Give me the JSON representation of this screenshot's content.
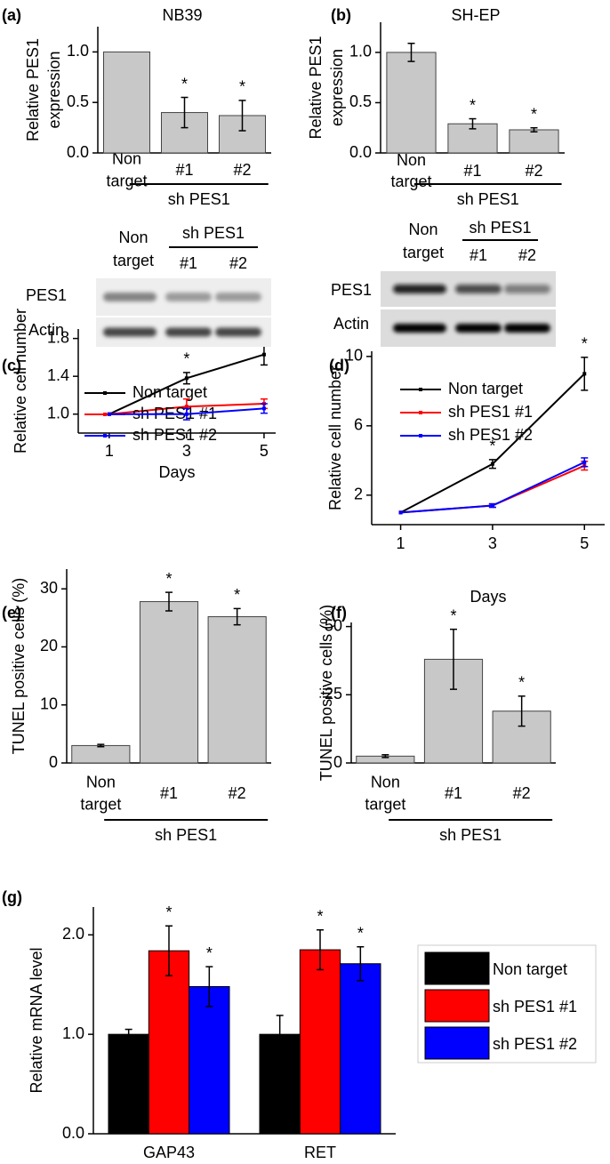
{
  "chart_data": [
    {
      "panel": "(a)",
      "type": "bar",
      "title": "NB39",
      "y_label": "Relative PES1 expression",
      "categories": [
        "Non target",
        "#1",
        "#2"
      ],
      "values": [
        1.0,
        0.4,
        0.37
      ],
      "errors": [
        null,
        0.15,
        0.15
      ],
      "annotations": [
        null,
        "*",
        "*"
      ],
      "group_label": "sh PES1",
      "color": "#c8c8c8",
      "ylim": [
        0,
        1.25
      ],
      "yticks": [
        {
          "value": 0,
          "label": "0.0"
        },
        0.5,
        {
          "value": 1,
          "label": "1.0"
        }
      ]
    },
    {
      "panel": "(b)",
      "type": "bar",
      "title": "SH-EP",
      "y_label": "Relative PES1 expression",
      "categories": [
        "Non target",
        "#1",
        "#2"
      ],
      "values": [
        1.0,
        0.29,
        0.23
      ],
      "errors": [
        0.09,
        0.05,
        0.02
      ],
      "annotations": [
        null,
        "*",
        "*"
      ],
      "group_label": "sh PES1",
      "color": "#c8c8c8",
      "ylim": [
        0,
        1.3
      ],
      "yticks": [
        {
          "value": 0,
          "label": "0.0"
        },
        0.5,
        {
          "value": 1,
          "label": "1.0"
        }
      ]
    },
    {
      "panel": "(c)",
      "type": "line",
      "x_label": "Days",
      "y_label": "Relative cell number",
      "legend": "upper left",
      "x": [
        1,
        3,
        5
      ],
      "xlim": [
        0.2,
        5.3
      ],
      "xticks": [
        1,
        3,
        5
      ],
      "ylim": [
        0.8,
        1.9
      ],
      "yticks": [
        {
          "value": 1,
          "label": "1.0"
        },
        1.4,
        1.8
      ],
      "series": [
        {
          "name": "Non target",
          "color": "#000000",
          "values": [
            1.0,
            1.38,
            1.63
          ],
          "errors": [
            null,
            0.06,
            0.11
          ],
          "annotations": [
            null,
            "*",
            "*"
          ]
        },
        {
          "name": "sh PES1 #1",
          "color": "#ff0000",
          "values": [
            1.0,
            1.08,
            1.11
          ],
          "errors": [
            null,
            0.08,
            0.05
          ]
        },
        {
          "name": "sh PES1 #2",
          "color": "#0000ff",
          "values": [
            1.0,
            1.0,
            1.06
          ],
          "errors": [
            null,
            0.06,
            0.05
          ]
        }
      ]
    },
    {
      "panel": "(d)",
      "type": "line",
      "x_label": "Days",
      "y_label": "Relative cell number",
      "legend": "upper left",
      "x": [
        1,
        3,
        5
      ],
      "xlim": [
        0.37,
        5.44
      ],
      "xticks": [
        1,
        3,
        5
      ],
      "ylim": [
        0.3,
        10.3
      ],
      "yticks": [
        2,
        6,
        10
      ],
      "series": [
        {
          "name": "Non target",
          "color": "#000000",
          "values": [
            1.0,
            3.8,
            9.0
          ],
          "errors": [
            null,
            0.25,
            0.95
          ],
          "annotations": [
            null,
            "*",
            "*"
          ]
        },
        {
          "name": "sh PES1 #1",
          "color": "#ff0000",
          "values": [
            1.0,
            1.4,
            3.7
          ],
          "errors": [
            null,
            0.1,
            0.25
          ]
        },
        {
          "name": "sh PES1 #2",
          "color": "#0000ff",
          "values": [
            1.0,
            1.4,
            3.9
          ],
          "errors": [
            null,
            0.1,
            0.25
          ]
        }
      ]
    },
    {
      "panel": "(e)",
      "type": "bar",
      "y_label": "TUNEL positive cells (%)",
      "categories": [
        "Non target",
        "#1",
        "#2"
      ],
      "values": [
        3.0,
        27.8,
        25.2
      ],
      "errors": [
        0.2,
        1.6,
        1.4
      ],
      "annotations": [
        null,
        "*",
        "*"
      ],
      "group_label": "sh PES1",
      "color": "#c8c8c8",
      "ylim": [
        0,
        33.4
      ],
      "yticks": [
        0,
        10,
        20,
        30
      ]
    },
    {
      "panel": "(f)",
      "type": "bar",
      "y_label": "TUNEL positive cells (%)",
      "categories": [
        "Non target",
        "#1",
        "#2"
      ],
      "values": [
        2.5,
        38,
        19
      ],
      "errors": [
        0.5,
        11,
        5.5
      ],
      "annotations": [
        null,
        "*",
        "*"
      ],
      "group_label": "sh PES1",
      "color": "#c8c8c8",
      "ylim": [
        0,
        51.5
      ],
      "yticks": [
        0,
        25,
        50
      ]
    },
    {
      "panel": "(g)",
      "type": "bar",
      "y_label": "Relative mRNA level",
      "legend": "right",
      "categories": [
        "GAP43",
        "RET"
      ],
      "ylim": [
        0,
        2.28
      ],
      "yticks": [
        {
          "value": 0,
          "label": "0.0"
        },
        {
          "value": 1,
          "label": "1.0"
        },
        {
          "value": 2,
          "label": "2.0"
        }
      ],
      "series": [
        {
          "name": "Non target",
          "color": "#000000",
          "values": [
            1.0,
            1.0
          ],
          "errors": [
            0.05,
            0.19
          ]
        },
        {
          "name": "sh PES1 #1",
          "color": "#ff0000",
          "values": [
            1.84,
            1.85
          ],
          "errors": [
            0.25,
            0.2
          ],
          "annotations": [
            "*",
            "*"
          ]
        },
        {
          "name": "sh PES1 #2",
          "color": "#0000ff",
          "values": [
            1.48,
            1.71
          ],
          "errors": [
            0.2,
            0.17
          ],
          "annotations": [
            "*",
            "*"
          ]
        }
      ]
    }
  ],
  "blots": [
    {
      "lanes": [
        "Non target",
        "#1",
        "#2"
      ],
      "group_label": "sh PES1",
      "rows": [
        "PES1",
        "Actin"
      ]
    },
    {
      "lanes": [
        "Non target",
        "#1",
        "#2"
      ],
      "group_label": "sh PES1",
      "rows": [
        "PES1",
        "Actin"
      ]
    }
  ]
}
